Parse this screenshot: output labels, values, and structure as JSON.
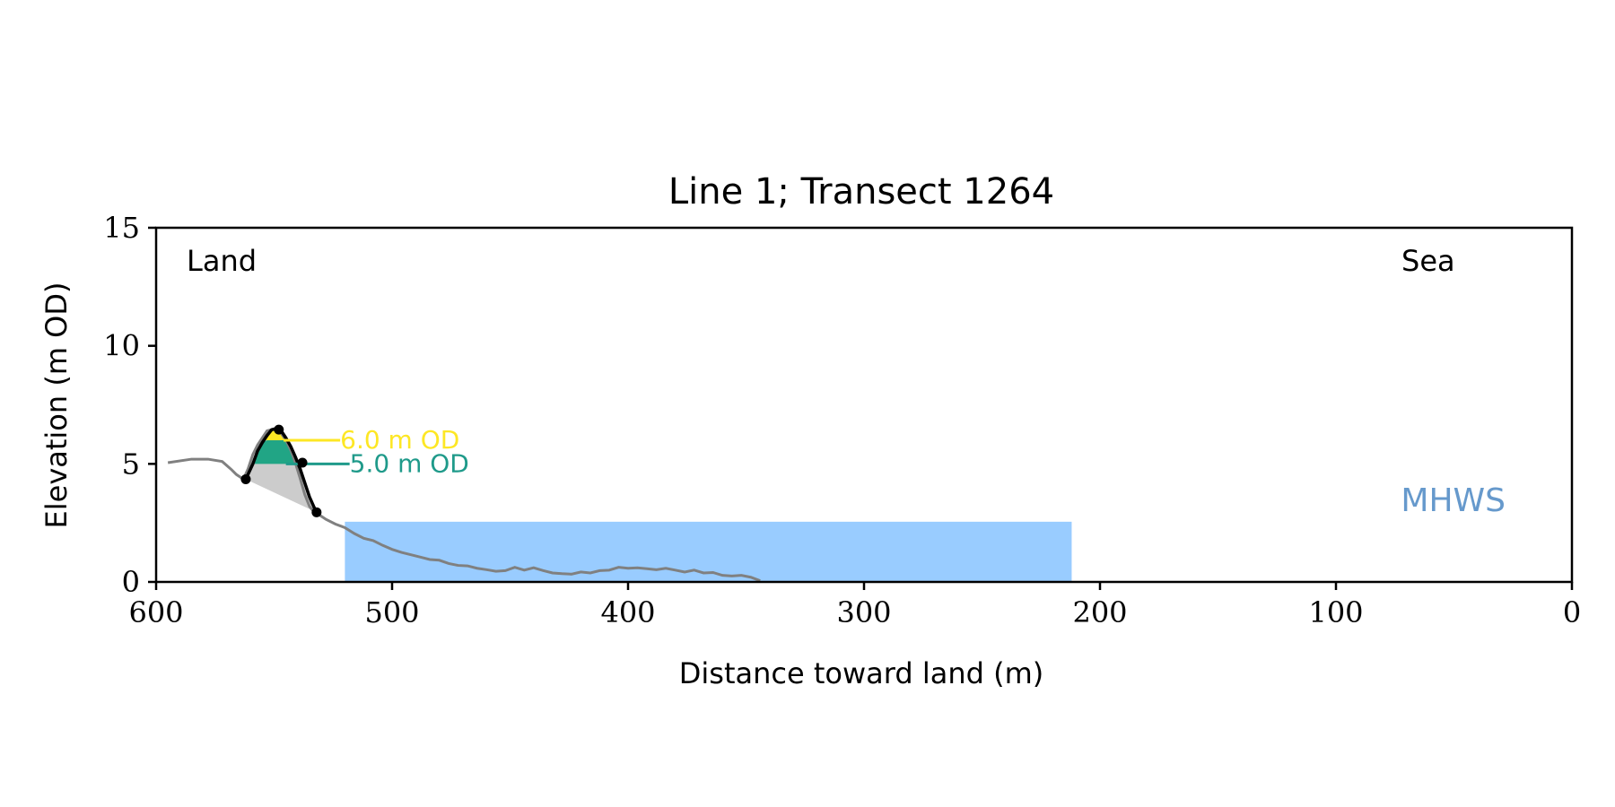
{
  "chart_data": {
    "type": "line",
    "title": "Line 1; Transect 1264",
    "xlabel": "Distance toward land (m)",
    "ylabel": "Elevation (m OD)",
    "xlim": [
      600,
      0
    ],
    "ylim": [
      0,
      15
    ],
    "x_ticks": [
      600,
      500,
      400,
      300,
      200,
      100,
      0
    ],
    "y_ticks": [
      0,
      5,
      10,
      15
    ],
    "grid": false,
    "legend": "none",
    "annotations": {
      "land": "Land",
      "sea": "Sea",
      "mhws": "MHWS",
      "contour_6": "6.0 m OD",
      "contour_5": "5.0 m OD"
    },
    "mhws_level": 2.55,
    "mhws_x_range": [
      520,
      212
    ],
    "contours": [
      {
        "level": 6.0,
        "x_start": 546,
        "x_end": 522
      },
      {
        "level": 5.0,
        "x_start": 545,
        "x_end": 518
      }
    ],
    "profile": {
      "x": [
        595,
        585,
        578,
        572,
        568,
        566,
        563,
        561,
        559,
        557,
        555,
        553,
        551,
        549,
        547,
        545,
        543,
        541,
        539,
        537,
        535,
        533,
        531,
        528,
        524,
        520,
        516,
        512,
        508,
        504,
        500,
        496,
        492,
        488,
        484,
        480,
        476,
        472,
        468,
        464,
        460,
        456,
        452,
        448,
        444,
        440,
        436,
        432,
        428,
        424,
        420,
        416,
        412,
        408,
        404,
        400,
        396,
        392,
        388,
        384,
        380,
        376,
        372,
        368,
        364,
        360,
        356,
        352,
        348,
        344
      ],
      "y": [
        5.05,
        5.2,
        5.2,
        5.1,
        4.75,
        4.55,
        4.35,
        4.8,
        5.4,
        5.8,
        6.1,
        6.4,
        6.45,
        6.45,
        6.3,
        6.0,
        5.6,
        5.05,
        4.4,
        3.7,
        3.2,
        2.95,
        2.85,
        2.65,
        2.45,
        2.3,
        2.05,
        1.85,
        1.75,
        1.55,
        1.38,
        1.25,
        1.15,
        1.05,
        0.95,
        0.92,
        0.78,
        0.7,
        0.68,
        0.58,
        0.52,
        0.45,
        0.48,
        0.62,
        0.5,
        0.6,
        0.48,
        0.38,
        0.35,
        0.33,
        0.42,
        0.38,
        0.48,
        0.5,
        0.62,
        0.58,
        0.6,
        0.56,
        0.52,
        0.58,
        0.5,
        0.42,
        0.5,
        0.38,
        0.4,
        0.28,
        0.25,
        0.28,
        0.2,
        0.05
      ]
    },
    "dune_outline": {
      "x": [
        562,
        559,
        557,
        555,
        553,
        551,
        549,
        547,
        545,
        543,
        541,
        539,
        537,
        535,
        533,
        532
      ],
      "y": [
        4.35,
        5.0,
        5.55,
        5.9,
        6.2,
        6.45,
        6.5,
        6.4,
        6.1,
        5.75,
        5.3,
        4.8,
        4.2,
        3.6,
        3.15,
        2.95
      ]
    },
    "markers": [
      {
        "x": 562,
        "y": 4.35
      },
      {
        "x": 548,
        "y": 6.45
      },
      {
        "x": 538,
        "y": 5.05
      },
      {
        "x": 532,
        "y": 2.95
      }
    ],
    "colors": {
      "profile": "#808080",
      "dune": "#000000",
      "grey_fill": "#cccccc",
      "band_5_6": "#21a585",
      "band_above_6": "#fde725",
      "contour_6": "#fde725",
      "contour_5": "#1f9a8a",
      "sea": "#99ccff",
      "mhws_text": "#6699cc"
    }
  }
}
